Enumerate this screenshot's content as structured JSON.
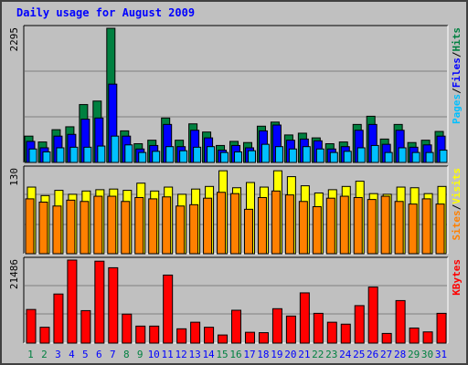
{
  "title": "Daily usage for August 2009",
  "colors": {
    "background": "#c0c0c0",
    "title": "#0000ff",
    "hits": "#008040",
    "files": "#0000ff",
    "pages": "#00c0ff",
    "visits": "#ffff00",
    "sites": "#ff8000",
    "kbytes": "#ff0000",
    "weekend_day_label": "#008040",
    "weekday_label": "#0000ff"
  },
  "chart_data": [
    {
      "type": "bar",
      "panel": "top",
      "ymax_label": "2295",
      "legend": [
        "Pages",
        "Files",
        "Hits"
      ],
      "categories": [
        "1",
        "2",
        "3",
        "4",
        "5",
        "6",
        "7",
        "8",
        "9",
        "10",
        "11",
        "12",
        "13",
        "14",
        "15",
        "16",
        "17",
        "18",
        "19",
        "20",
        "21",
        "22",
        "23",
        "24",
        "25",
        "26",
        "27",
        "28",
        "29",
        "30",
        "31"
      ],
      "weekend_days": [
        "1",
        "2",
        "8",
        "9",
        "15",
        "16",
        "22",
        "23",
        "29",
        "30"
      ],
      "ylim": [
        0,
        2295
      ],
      "series": [
        {
          "name": "Hits",
          "values": [
            450,
            350,
            560,
            610,
            990,
            1050,
            2295,
            540,
            320,
            380,
            760,
            380,
            660,
            520,
            290,
            360,
            340,
            620,
            690,
            470,
            500,
            420,
            320,
            350,
            650,
            790,
            400,
            650,
            340,
            380,
            530
          ]
        },
        {
          "name": "Files",
          "values": [
            360,
            250,
            450,
            480,
            740,
            760,
            1340,
            450,
            230,
            290,
            650,
            270,
            550,
            420,
            210,
            290,
            250,
            540,
            640,
            380,
            400,
            370,
            230,
            270,
            550,
            650,
            310,
            550,
            260,
            300,
            450
          ]
        },
        {
          "name": "Pages",
          "values": [
            230,
            180,
            250,
            260,
            260,
            280,
            450,
            300,
            170,
            190,
            270,
            200,
            260,
            270,
            170,
            180,
            200,
            310,
            270,
            230,
            270,
            230,
            170,
            190,
            250,
            290,
            170,
            250,
            170,
            170,
            210
          ]
        }
      ]
    },
    {
      "type": "bar",
      "panel": "middle",
      "ymax_label": "130",
      "legend": [
        "Sites",
        "Visits"
      ],
      "categories": [
        "1",
        "2",
        "3",
        "4",
        "5",
        "6",
        "7",
        "8",
        "9",
        "10",
        "11",
        "12",
        "13",
        "14",
        "15",
        "16",
        "17",
        "18",
        "19",
        "20",
        "21",
        "22",
        "23",
        "24",
        "25",
        "26",
        "27",
        "28",
        "29",
        "30",
        "31"
      ],
      "ylim": [
        0,
        130
      ],
      "series": [
        {
          "name": "Visits",
          "values": [
            102,
            89,
            97,
            91,
            96,
            98,
            99,
            97,
            108,
            96,
            102,
            91,
            99,
            103,
            127,
            101,
            109,
            102,
            127,
            118,
            104,
            93,
            98,
            103,
            111,
            92,
            91,
            102,
            101,
            92,
            103
          ]
        },
        {
          "name": "Sites",
          "values": [
            84,
            79,
            73,
            82,
            80,
            88,
            88,
            80,
            86,
            84,
            87,
            73,
            75,
            85,
            94,
            92,
            68,
            86,
            96,
            90,
            80,
            72,
            85,
            88,
            86,
            83,
            88,
            80,
            76,
            84,
            76
          ]
        }
      ]
    },
    {
      "type": "bar",
      "panel": "bottom",
      "ymax_label": "21486",
      "legend": [
        "KBytes"
      ],
      "categories": [
        "1",
        "2",
        "3",
        "4",
        "5",
        "6",
        "7",
        "8",
        "9",
        "10",
        "11",
        "12",
        "13",
        "14",
        "15",
        "16",
        "17",
        "18",
        "19",
        "20",
        "21",
        "22",
        "23",
        "24",
        "25",
        "26",
        "27",
        "28",
        "29",
        "30",
        "31"
      ],
      "ylim": [
        0,
        21486
      ],
      "series": [
        {
          "name": "KBytes",
          "values": [
            8700,
            4100,
            12700,
            21486,
            8400,
            21200,
            19500,
            7500,
            4400,
            4400,
            17600,
            3700,
            5400,
            4100,
            2100,
            8500,
            2800,
            2700,
            8900,
            7000,
            13000,
            7700,
            5400,
            4900,
            9700,
            14500,
            2500,
            11000,
            3900,
            2900,
            7700
          ]
        }
      ]
    }
  ]
}
